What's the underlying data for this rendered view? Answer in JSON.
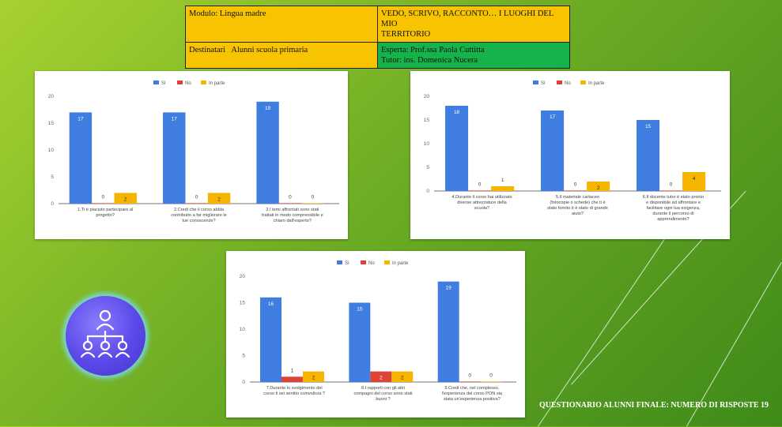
{
  "header": {
    "module_label": "Modulo: Lingua madre",
    "title_line1": "VEDO, SCRIVO, RACCONTO… I LUOGHI DEL MIO",
    "title_line2": "TERRITORIO",
    "recipients_label": "Destinatari   Alunni scuola primaria",
    "expert_label": "Esperta: Prof.ssa Paola Cuttitta",
    "tutor_label": "Tutor: ins. Domenica Nucera"
  },
  "caption": "QUESTIONARIO ALUNNI FINALE: NUMERO DI RISPOSTE 19",
  "icon": "people-hierarchy-icon",
  "colors": {
    "si": "#3f7de0",
    "no": "#db4437",
    "in_parte": "#f4b400"
  },
  "chart_data": [
    {
      "type": "bar",
      "legend": [
        "Sì",
        "No",
        "In parte"
      ],
      "legend_position": "top",
      "ylim": [
        0,
        20
      ],
      "yticks": [
        "0",
        "5",
        "10",
        "15",
        "20"
      ],
      "grid": false,
      "categories": [
        [
          "1.Ti è piaciuto partecipare al",
          "progetto?"
        ],
        [
          "2.Credi che il corso abbia",
          "contribuito a far migliorare le",
          "tue conoscenze?"
        ],
        [
          "3.I temi affrontati sono stati",
          "trattati in modo comprensibile e",
          "chiaro dall'esperto?"
        ]
      ],
      "series": [
        {
          "name": "Sì",
          "values": [
            17,
            17,
            19
          ]
        },
        {
          "name": "No",
          "values": [
            0,
            0,
            0
          ]
        },
        {
          "name": "In parte",
          "values": [
            2,
            2,
            0
          ]
        }
      ]
    },
    {
      "type": "bar",
      "legend": [
        "Sì",
        "No",
        "In parte"
      ],
      "legend_position": "top",
      "ylim": [
        0,
        20
      ],
      "yticks": [
        "0",
        "5",
        "10",
        "15",
        "20"
      ],
      "grid": false,
      "categories": [
        [
          "4.Durante il corso hai utilizzato",
          "diverse attrezzature della",
          "scuola?"
        ],
        [
          "5.Il materiale cartaceo",
          "(fotocopie o schede) che ti è",
          "stato fornito ti è stato di grande",
          "aiuto?"
        ],
        [
          "6.Il docente tutor è stato pronto",
          "e disponibile ad affrontare e",
          "facilitare ogni tua esigenza,",
          "durante il percorso di",
          "apprendimento?"
        ]
      ],
      "series": [
        {
          "name": "Sì",
          "values": [
            18,
            17,
            15
          ]
        },
        {
          "name": "No",
          "values": [
            0,
            0,
            0
          ]
        },
        {
          "name": "In parte",
          "values": [
            1,
            2,
            4
          ]
        }
      ]
    },
    {
      "type": "bar",
      "legend": [
        "Sì",
        "No",
        "In parte"
      ],
      "legend_position": "top",
      "ylim": [
        0,
        20
      ],
      "yticks": [
        "0",
        "5",
        "10",
        "15",
        "20"
      ],
      "grid": false,
      "categories": [
        [
          "7.Durante lo svolgimento del",
          "corso ti sei sentito coinvolto/a ?"
        ],
        [
          "8.I rapporti con gli altri",
          "compagni del corso sono stati",
          "buoni ?"
        ],
        [
          "9.Credi che, nel complesso,",
          "l'esperienza del corso PON sia",
          "stata un'esperienza positiva?"
        ]
      ],
      "series": [
        {
          "name": "Sì",
          "values": [
            16,
            15,
            19
          ]
        },
        {
          "name": "No",
          "values": [
            1,
            2,
            0
          ]
        },
        {
          "name": "In parte",
          "values": [
            2,
            2,
            0
          ]
        }
      ]
    }
  ]
}
